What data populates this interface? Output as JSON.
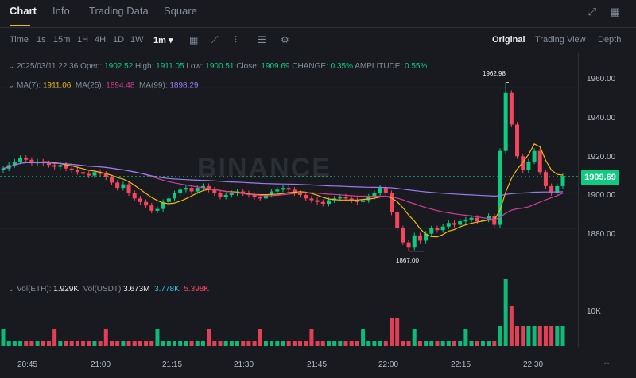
{
  "tabs": [
    "Chart",
    "Info",
    "Trading Data",
    "Square"
  ],
  "toolbar": {
    "intervals": [
      "Time",
      "1s",
      "15m",
      "1H",
      "4H",
      "1D",
      "1W"
    ],
    "selected_interval": "1m ▾",
    "views": [
      "Original",
      "Trading View",
      "Depth"
    ]
  },
  "info": {
    "date": "2025/03/11 22:36",
    "open_label": "Open:",
    "open": "1902.52",
    "high_label": "High:",
    "high": "1911.05",
    "low_label": "Low:",
    "low": "1900.51",
    "close_label": "Close:",
    "close": "1909.69",
    "change_label": "CHANGE:",
    "change": "0.35%",
    "amp_label": "AMPLITUDE:",
    "amp": "0.55%",
    "ma7_label": "MA(7):",
    "ma7": "1911.06",
    "ma25_label": "MA(25):",
    "ma25": "1894.48",
    "ma99_label": "MA(99):",
    "ma99": "1898.29"
  },
  "volume_info": {
    "eth_label": "Vol(ETH):",
    "eth": "1.929K",
    "usdt_label": "Vol(USDT)",
    "usdt": "3.673M",
    "v1": "3.778K",
    "v2": "5.398K"
  },
  "price_axis": [
    "1960.00",
    "1940.00",
    "1920.00",
    "1900.00",
    "1880.00"
  ],
  "volume_axis": [
    "10K"
  ],
  "last_price": "1909.69",
  "annotations": {
    "high": "1962.98",
    "low": "1867.00"
  },
  "watermark": "BINANCE",
  "time_axis": [
    "20:45",
    "21:00",
    "21:15",
    "21:30",
    "21:45",
    "22:00",
    "22:15",
    "22:30"
  ],
  "colors": {
    "up": "#0ecb81",
    "down": "#f6465d",
    "ma7": "#f0b90b",
    "ma25": "#d63d9a",
    "ma99": "#9b7cf0"
  },
  "chart_data": {
    "type": "candlestick",
    "ylim": [
      1856,
      1970
    ],
    "approx_closes": [
      1914,
      1916,
      1918,
      1920,
      1919,
      1917,
      1918,
      1917,
      1916,
      1915,
      1916,
      1914,
      1913,
      1912,
      1911,
      1910,
      1912,
      1911,
      1909,
      1906,
      1903,
      1905,
      1900,
      1897,
      1895,
      1893,
      1890,
      1891,
      1895,
      1897,
      1900,
      1902,
      1903,
      1901,
      1903,
      1904,
      1902,
      1900,
      1898,
      1899,
      1900,
      1901,
      1900,
      1899,
      1898,
      1897,
      1899,
      1901,
      1902,
      1903,
      1902,
      1900,
      1899,
      1897,
      1896,
      1895,
      1894,
      1896,
      1897,
      1898,
      1897,
      1896,
      1895,
      1896,
      1898,
      1900,
      1903,
      1900,
      1889,
      1880,
      1872,
      1869,
      1876,
      1873,
      1877,
      1880,
      1879,
      1881,
      1883,
      1882,
      1884,
      1885,
      1886,
      1884,
      1885,
      1887,
      1882,
      1924,
      1957,
      1939,
      1921,
      1913,
      1918,
      1924,
      1912,
      1904,
      1900,
      1904,
      1909.69
    ],
    "key_points": {
      "high": 1962.98,
      "low": 1867.0,
      "last": 1909.69
    }
  }
}
